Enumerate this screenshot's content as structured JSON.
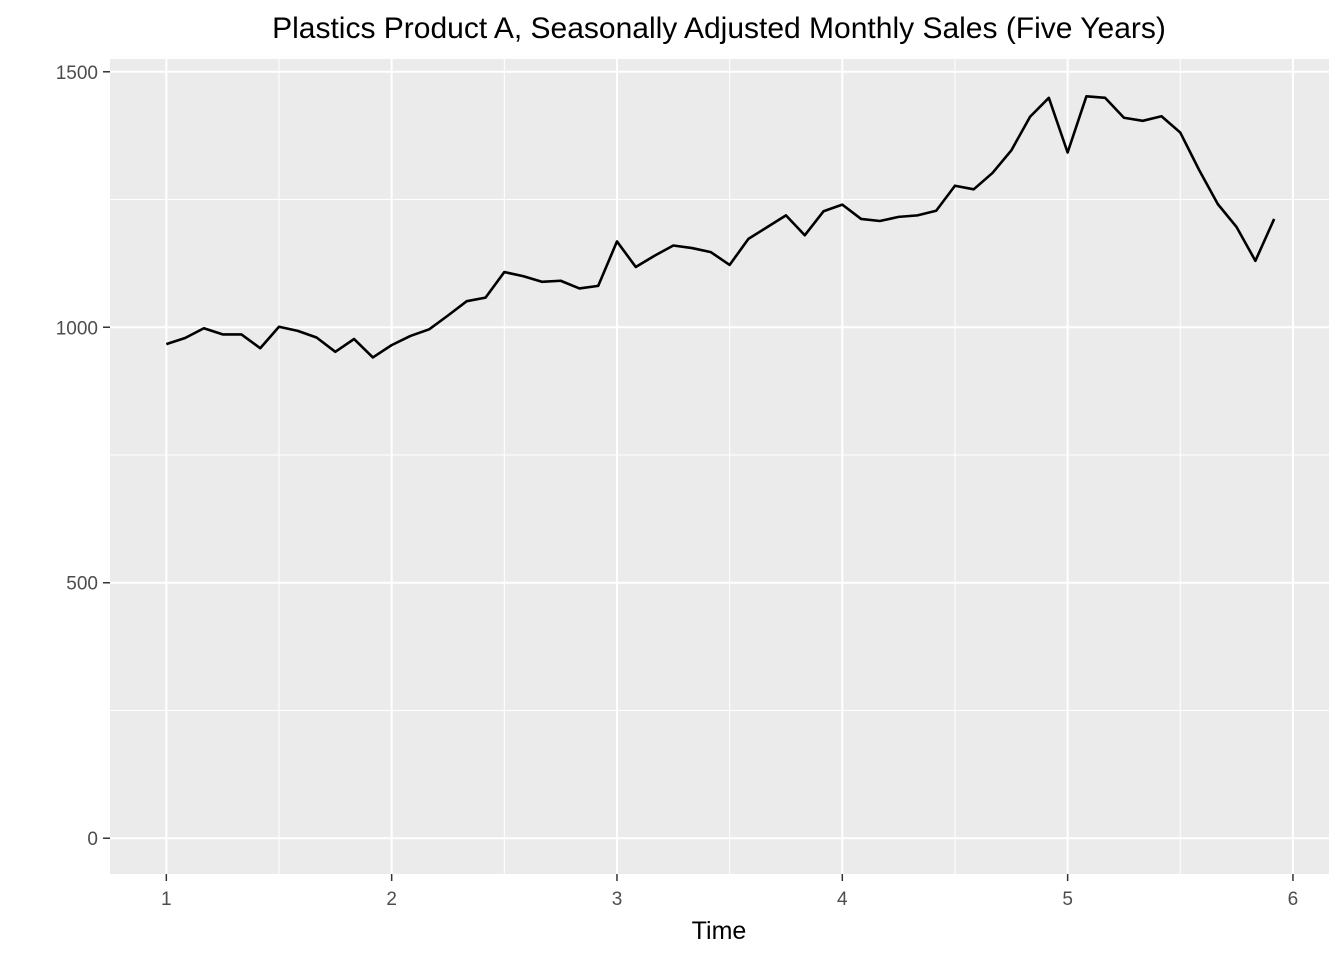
{
  "chart_data": {
    "type": "line",
    "title": "Plastics Product A, Seasonally Adjusted Monthly Sales (Five Years)",
    "xlabel": "Time",
    "ylabel": "",
    "xlim": [
      0.75,
      6.16
    ],
    "ylim": [
      -70,
      1525
    ],
    "x_ticks": [
      1,
      2,
      3,
      4,
      5,
      6
    ],
    "y_ticks": [
      0,
      500,
      1000,
      1500
    ],
    "x_tick_labels": [
      "1",
      "2",
      "3",
      "4",
      "5",
      "6"
    ],
    "y_tick_labels": [
      "0",
      "500",
      "1000",
      "1500"
    ],
    "grid": true,
    "panel_background": "#ebebeb",
    "grid_color": "#ffffff",
    "line_color": "#000000",
    "series": [
      {
        "x_start": 1,
        "x_step": 0.083333,
        "values": [
          967,
          979,
          998,
          986,
          986,
          959,
          1001,
          993,
          980,
          952,
          977,
          941,
          965,
          983,
          996,
          1023,
          1051,
          1058,
          1108,
          1100,
          1089,
          1091,
          1076,
          1081,
          1168,
          1118,
          1140,
          1160,
          1155,
          1147,
          1122,
          1173,
          1196,
          1219,
          1180,
          1227,
          1240,
          1212,
          1208,
          1216,
          1219,
          1228,
          1277,
          1270,
          1302,
          1346,
          1412,
          1449,
          1342,
          1452,
          1449,
          1410,
          1404,
          1413,
          1381,
          1308,
          1241,
          1196,
          1130,
          1212
        ]
      }
    ]
  }
}
